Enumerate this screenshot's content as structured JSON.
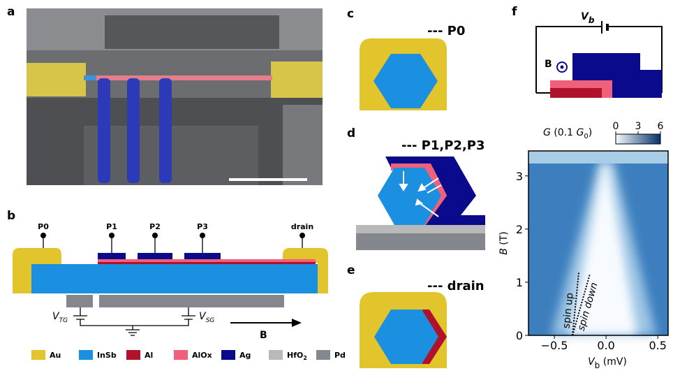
{
  "panel_labels": [
    "a",
    "b",
    "c",
    "d",
    "e",
    "f"
  ],
  "b": {
    "terminals": [
      "P0",
      "P1",
      "P2",
      "P3",
      "drain"
    ],
    "gate_left": {
      "symbol": "V",
      "sub": "TG"
    },
    "gate_right": {
      "symbol": "V",
      "sub": "SG"
    },
    "field": "B",
    "legend": [
      {
        "name": "Au",
        "color": "#e2c42c"
      },
      {
        "name": "InSb",
        "color": "#1b8fe0"
      },
      {
        "name": "Al",
        "color": "#b0112b"
      },
      {
        "name": "AlOx",
        "color": "#f0607a"
      },
      {
        "name": "Ag",
        "color": "#0a0a8c"
      },
      {
        "name": "HfO",
        "sub": "2",
        "color": "#b9b9b9"
      },
      {
        "name": "Pd",
        "color": "#85878e"
      }
    ]
  },
  "c": {
    "caption": "--- P0"
  },
  "d": {
    "caption": "--- P1,P2,P3"
  },
  "e": {
    "caption": "--- drain"
  },
  "f": {
    "bias": {
      "symbol": "V",
      "sub": "b"
    },
    "field": "B",
    "colorbar": {
      "label": [
        "G",
        " (0.1 ",
        "G",
        "0",
        ")"
      ],
      "lim": [
        0,
        6
      ],
      "ticks": [
        0,
        3,
        6
      ]
    },
    "chart_data": {
      "type": "heatmap",
      "xlabel": [
        "V",
        "b",
        " (mV)"
      ],
      "ylabel": [
        "B",
        " (T)"
      ],
      "xlim": [
        -0.75,
        0.6
      ],
      "ylim": [
        0,
        3.47
      ],
      "xticks": [
        {
          "value": -0.5,
          "label": "−0.5"
        },
        {
          "value": 0,
          "label": "0.0"
        },
        0.5
      ],
      "yticks": [
        0,
        1,
        2,
        3
      ],
      "annotations": [
        "spin up",
        "spin down"
      ]
    }
  }
}
